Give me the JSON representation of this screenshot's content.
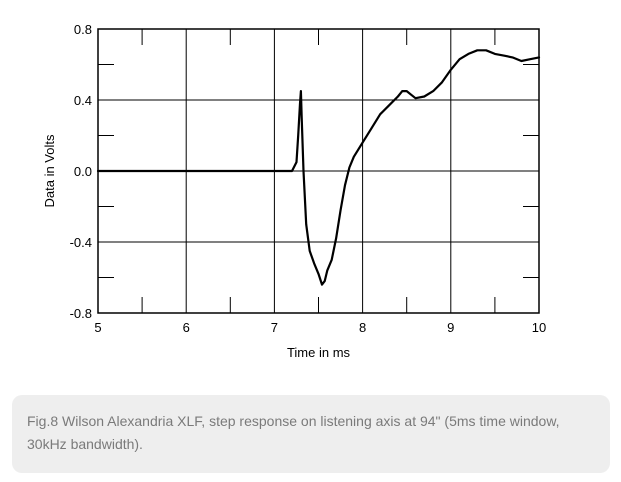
{
  "chart_data": {
    "type": "line",
    "title": "",
    "xlabel": "Time in ms",
    "ylabel": "Data in Volts",
    "xlim": [
      5,
      10
    ],
    "ylim": [
      -0.8,
      0.8
    ],
    "x_ticks": [
      "5",
      "6",
      "7",
      "8",
      "9",
      "10"
    ],
    "y_ticks": [
      "0.8",
      "0.4",
      "0.0",
      "-0.4",
      "-0.8"
    ],
    "grid": true,
    "legend": "none",
    "line_color": "#000000",
    "series": [
      {
        "x": [
          5.0,
          7.2,
          7.25,
          7.27,
          7.29,
          7.3,
          7.31,
          7.33,
          7.36,
          7.4,
          7.45,
          7.5,
          7.54,
          7.57,
          7.6,
          7.65,
          7.7,
          7.75,
          7.8,
          7.85,
          7.9,
          7.95,
          8.0,
          8.1,
          8.2,
          8.3,
          8.4,
          8.45,
          8.5,
          8.55,
          8.6,
          8.7,
          8.8,
          8.9,
          9.0,
          9.1,
          9.2,
          9.3,
          9.4,
          9.5,
          9.6,
          9.7,
          9.8,
          9.9,
          10.0
        ],
        "y": [
          0.0,
          0.0,
          0.05,
          0.2,
          0.38,
          0.45,
          0.3,
          0.0,
          -0.3,
          -0.45,
          -0.52,
          -0.58,
          -0.64,
          -0.62,
          -0.56,
          -0.5,
          -0.38,
          -0.22,
          -0.08,
          0.02,
          0.08,
          0.12,
          0.16,
          0.24,
          0.32,
          0.37,
          0.42,
          0.45,
          0.45,
          0.43,
          0.41,
          0.42,
          0.45,
          0.5,
          0.57,
          0.63,
          0.66,
          0.68,
          0.68,
          0.66,
          0.65,
          0.64,
          0.62,
          0.63,
          0.64
        ]
      }
    ]
  },
  "caption": {
    "text": "Fig.8 Wilson Alexandria XLF, step response on listening axis at 94\" (5ms time window, 30kHz bandwidth)."
  }
}
